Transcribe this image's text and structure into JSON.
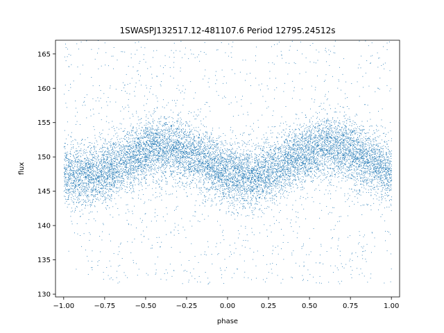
{
  "chart_data": {
    "type": "scatter",
    "title": "1SWASPJ132517.12-481107.6 Period 12795.24512s",
    "xlabel": "phase",
    "ylabel": "flux",
    "xlim": [
      -1.05,
      1.05
    ],
    "ylim": [
      129.6,
      167.0
    ],
    "xticks": [
      -1.0,
      -0.75,
      -0.5,
      -0.25,
      0.0,
      0.25,
      0.5,
      0.75,
      1.0
    ],
    "xtick_labels": [
      "−1.00",
      "−0.75",
      "−0.50",
      "−0.25",
      "0.00",
      "0.25",
      "0.50",
      "0.75",
      "1.00"
    ],
    "yticks": [
      130,
      135,
      140,
      145,
      150,
      155,
      160,
      165
    ],
    "ytick_labels": [
      "130",
      "135",
      "140",
      "145",
      "150",
      "155",
      "160",
      "165"
    ],
    "grid": false,
    "marker_color": "#1f77b4",
    "phase_range": [
      -1.0,
      1.0
    ],
    "flux_range": [
      131.5,
      167.0
    ],
    "curve": {
      "mean_flux": 149.3,
      "amplitude": 2.1,
      "maxima_phase": [
        -0.38,
        0.62
      ],
      "minima_phase": [
        -0.88,
        0.12
      ],
      "core_scatter_sd": 2.2
    }
  }
}
